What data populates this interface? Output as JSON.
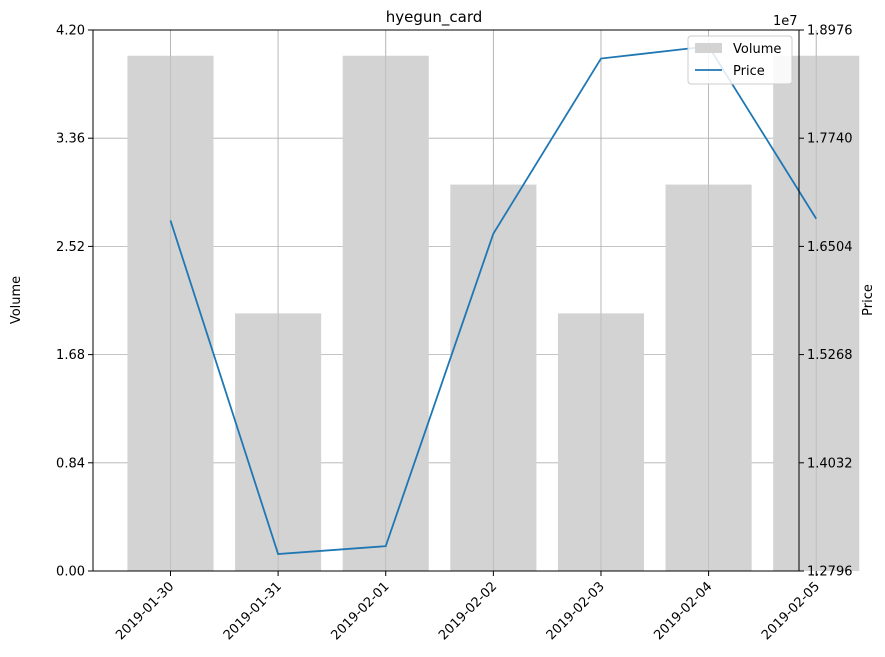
{
  "chart_data": {
    "type": "bar+line",
    "title": "hyegun_card",
    "categories": [
      "2019-01-30",
      "2019-01-31",
      "2019-02-01",
      "2019-02-02",
      "2019-02-03",
      "2019-02-04",
      "2019-02-05"
    ],
    "series": [
      {
        "name": "Volume",
        "type": "bar",
        "axis": "left",
        "color": "#d3d3d3",
        "values": [
          4.0,
          2.0,
          4.0,
          3.0,
          2.0,
          3.0,
          4.0
        ]
      },
      {
        "name": "Price",
        "type": "line",
        "axis": "right",
        "color": "#1f77b4",
        "values": [
          16800000,
          12990000,
          13080000,
          16650000,
          18650000,
          18790000,
          16820000
        ]
      }
    ],
    "y_left": {
      "label": "Volume",
      "range": [
        0.0,
        4.2
      ],
      "ticks": [
        "0.00",
        "0.84",
        "1.68",
        "2.52",
        "3.36",
        "4.20"
      ]
    },
    "y_right": {
      "label": "Price",
      "range": [
        12796000,
        18976000
      ],
      "ticks": [
        "1.2796",
        "1.4032",
        "1.5268",
        "1.6504",
        "1.7740",
        "1.8976"
      ],
      "offset_label": "1e7"
    },
    "grid": true,
    "legend": "top-right",
    "xtick_rotation": 45
  }
}
